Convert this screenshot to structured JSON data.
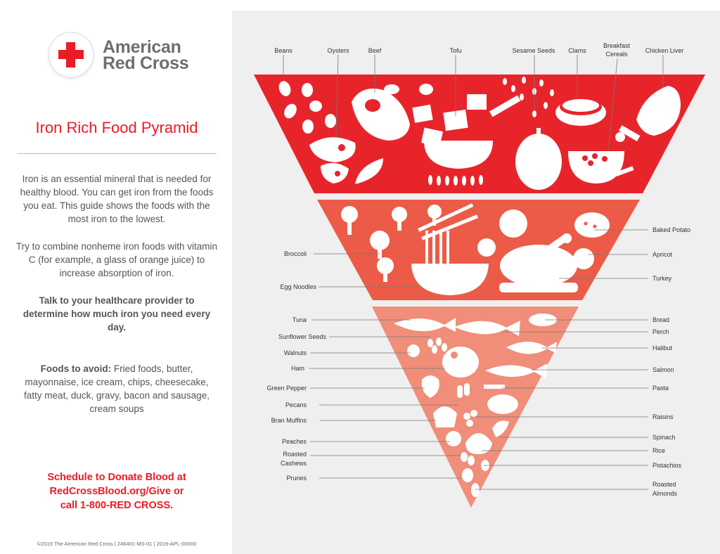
{
  "header": {
    "brand_line1": "American",
    "brand_line2": "Red Cross",
    "title": "Iron Rich Food Pyramid"
  },
  "intro": {
    "p1": "Iron is an essential mineral that is needed for healthy blood. You can get iron from the foods you eat. This guide shows the foods with the most iron to the lowest.",
    "p2": "Try to combine nonheme iron foods with vitamin C (for example, a glass of orange juice) to increase absorption of iron.",
    "p3": "Talk to your healthcare provider to determine how much iron you need every day.",
    "avoid_label": "Foods to avoid:",
    "avoid_text": " Fried foods, butter, mayonnaise, ice cream, chips, cheesecake, fatty meat, duck, gravy, bacon and sausage, cream soups"
  },
  "cta": {
    "line1": "Schedule to Donate Blood at",
    "line2": "RedCrossBlood.org/Give or",
    "line3": "call 1-800-RED CROSS."
  },
  "footer": {
    "copyright": "©2019 The American Red Cross | 246401-MS-01 | 2019-APL-00000"
  },
  "colors": {
    "tier1": "#e8242b",
    "tier2": "#ec5b47",
    "tier3": "#f08e79",
    "brand_red": "#ed1b24",
    "panel": "#efefef"
  },
  "pyramid": {
    "tier1_labels": {
      "beans": "Beans",
      "oysters": "Oysters",
      "beef": "Beef",
      "tofu": "Tofu",
      "sesame": "Sesame Seeds",
      "clams": "Clams",
      "cereals_1": "Breakfast",
      "cereals_2": "Cereals",
      "chicken_liver": "Chicken Liver"
    },
    "tier2_labels": {
      "broccoli": "Broccoli",
      "egg_noodles": "Egg Noodles",
      "baked_potato": "Baked Potato",
      "apricot": "Apricot",
      "turkey": "Turkey"
    },
    "tier3_left": {
      "tuna": "Tuna",
      "sunflower": "Sunflower Seeds",
      "walnuts": "Walnuts",
      "ham": "Ham",
      "green_pepper": "Green Pepper",
      "pecans": "Pecans",
      "bran_muffins": "Bran Muffins",
      "peaches": "Peaches",
      "cashews_1": "Roasted",
      "cashews_2": "Cashews",
      "prunes": "Prunes"
    },
    "tier3_right": {
      "bread": "Bread",
      "perch": "Perch",
      "halibut": "Halibut",
      "salmon": "Salmon",
      "pasta": "Pasta",
      "raisins": "Raisins",
      "spinach": "Spinach",
      "rice": "Rice",
      "pistachios": "Pistachios",
      "almonds_1": "Roasted",
      "almonds_2": "Almonds"
    }
  }
}
